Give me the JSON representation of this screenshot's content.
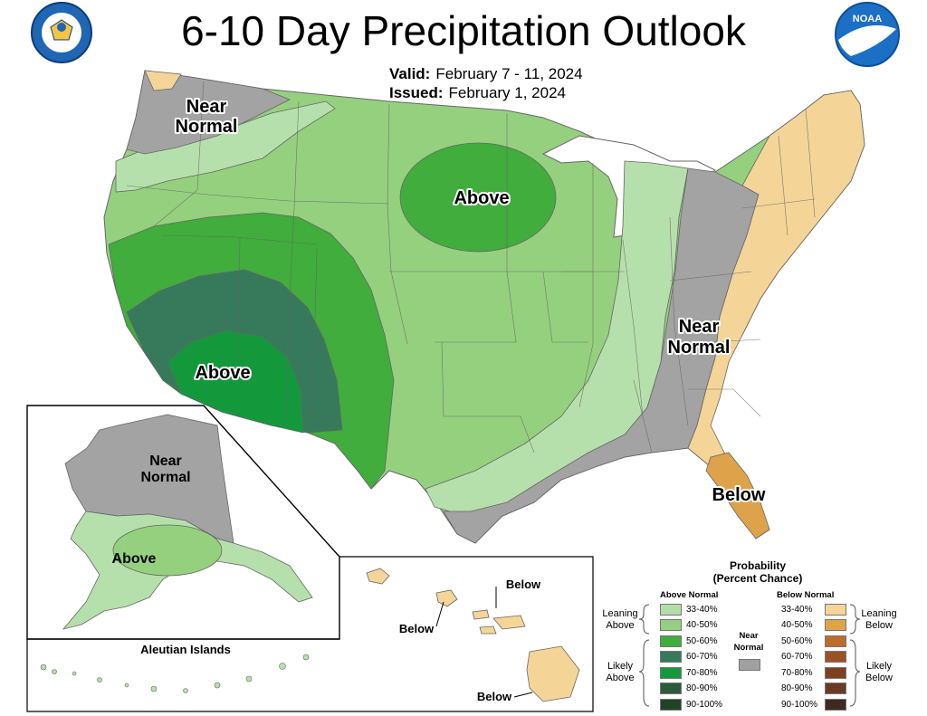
{
  "header": {
    "title": "6-10 Day Precipitation Outlook",
    "valid_label": "Valid:",
    "valid_value": "February 7 - 11, 2024",
    "issued_label": "Issued:",
    "issued_value": "February 1, 2024"
  },
  "logos": {
    "commerce_seal_text": "DEPARTMENT OF COMMERCE · UNITED STATES OF AMERICA",
    "noaa_text": "NOAA"
  },
  "map_labels": {
    "nw_near_normal_1": "Near",
    "nw_near_normal_2": "Normal",
    "plains_above": "Above",
    "sw_above": "Above",
    "east_near_normal_1": "Near",
    "east_near_normal_2": "Normal",
    "fl_below": "Below",
    "ak_near_normal_1": "Near",
    "ak_near_normal_2": "Normal",
    "ak_above": "Above",
    "aleutian_title": "Aleutian Islands",
    "hi_below_1": "Below",
    "hi_below_2": "Below",
    "hi_below_3": "Below"
  },
  "legend": {
    "title_1": "Probability",
    "title_2": "(Percent Chance)",
    "above_header": "Above Normal",
    "below_header": "Below Normal",
    "near_normal_1": "Near",
    "near_normal_2": "Normal",
    "leaning_above_1": "Leaning",
    "leaning_above_2": "Above",
    "likely_above_1": "Likely",
    "likely_above_2": "Above",
    "leaning_below_1": "Leaning",
    "leaning_below_2": "Below",
    "likely_below_1": "Likely",
    "likely_below_2": "Below",
    "above_bins": [
      {
        "label": "33-40%",
        "color": "#b3dea8"
      },
      {
        "label": "40-50%",
        "color": "#93d07f"
      },
      {
        "label": "50-60%",
        "color": "#3fae3a"
      },
      {
        "label": "60-70%",
        "color": "#357a5a"
      },
      {
        "label": "70-80%",
        "color": "#149a3c"
      },
      {
        "label": "80-90%",
        "color": "#2b5c3a"
      },
      {
        "label": "90-100%",
        "color": "#1f4425"
      }
    ],
    "below_bins": [
      {
        "label": "33-40%",
        "color": "#f4d597"
      },
      {
        "label": "40-50%",
        "color": "#dfa44a"
      },
      {
        "label": "50-60%",
        "color": "#bd6d2a"
      },
      {
        "label": "60-70%",
        "color": "#9a5324"
      },
      {
        "label": "70-80%",
        "color": "#80401f"
      },
      {
        "label": "80-90%",
        "color": "#6a3a24"
      },
      {
        "label": "90-100%",
        "color": "#3e2a20"
      }
    ],
    "near_color": "#a0a0a0"
  },
  "colors": {
    "near_normal": "#a3a3a3",
    "above_33_40": "#b6e0ab",
    "above_40_50": "#95d07f",
    "above_50_60": "#40ad3c",
    "above_60_70": "#367a5b",
    "above_70_80": "#13993c",
    "below_33_40": "#f4d597",
    "below_40_50": "#dea24a",
    "lakes": "#ffffff"
  }
}
